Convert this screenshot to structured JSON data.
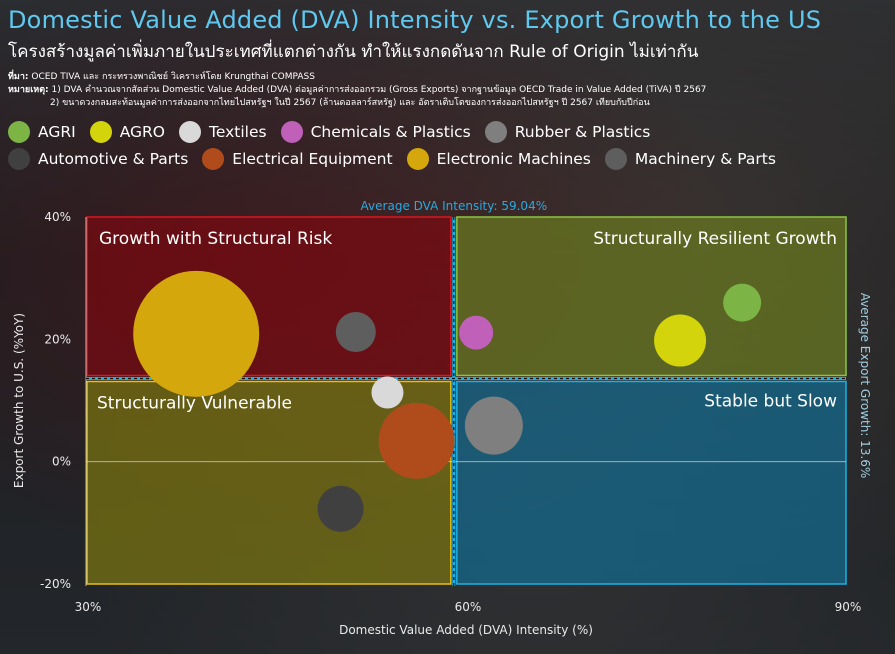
{
  "header": {
    "title": "Domestic Value Added (DVA) Intensity vs. Export Growth to the US",
    "subtitle": "โครงสร้างมูลค่าเพิ่มภายในประเทศที่แตกต่างกัน ทำให้แรงกดดันจาก Rule of Origin ไม่เท่ากัน",
    "source_label": "ที่มา:",
    "source_text": " OCED TIVA และ กระทรวงพาณิชย์ วิเคราะห์โดย Krungthai COMPASS",
    "note_label": "หมายเหตุ:",
    "note_1": " 1) DVA คำนวณจากสัดส่วน Domestic Value Added (DVA) ต่อมูลค่าการส่งออกรวม (Gross Exports) จากฐานข้อมูล OECD Trade in Value Added (TiVA) ปี 2567",
    "note_2": "2) ขนาดวงกลมสะท้อนมูลค่าการส่งออกจากไทยไปสหรัฐฯ ในปี 2567 (ล้านดอลลาร์สหรัฐ) และ อัตราเติบโตของการส่งออกไปสหรัฐฯ ปี 2567 เทียบกับปีก่อน"
  },
  "legend": [
    {
      "label": "AGRI",
      "color": "#7db446"
    },
    {
      "label": "AGRO",
      "color": "#d4d40c"
    },
    {
      "label": "Textiles",
      "color": "#d9d9d9"
    },
    {
      "label": "Chemicals & Plastics",
      "color": "#c060b8"
    },
    {
      "label": "Rubber & Plastics",
      "color": "#7f7f7f"
    },
    {
      "label": "Automotive & Parts",
      "color": "#404040"
    },
    {
      "label": "Electrical Equipment",
      "color": "#b04c1c"
    },
    {
      "label": "Electronic Machines",
      "color": "#d4a80c"
    },
    {
      "label": "Machinery & Parts",
      "color": "#5e5e5e"
    }
  ],
  "chart_data": {
    "type": "scatter",
    "subtype": "bubble",
    "title": "Domestic Value Added (DVA) Intensity vs. Export Growth to the US",
    "xlabel": "Domestic Value Added (DVA) Intensity (%)",
    "ylabel": "Export Growth to U.S. (%YoY)",
    "xlim": [
      30,
      90
    ],
    "ylim": [
      -20,
      40
    ],
    "x_ticks": [
      "30%",
      "60%",
      "90%"
    ],
    "x_tick_values": [
      30,
      60,
      90
    ],
    "y_ticks": [
      "40%",
      "20%",
      "0%",
      "-20%"
    ],
    "y_tick_values": [
      40,
      20,
      0,
      -20
    ],
    "avg_x": 59.04,
    "avg_y": 13.6,
    "avg_x_label": "Average DVA Intensity: 59.04%",
    "avg_y_label": "Average Export Growth: 13.6%",
    "quadrants": [
      {
        "label": "Growth with Structural Risk",
        "position": "top-left",
        "fill": "#7a0a10",
        "border": "#e0141e"
      },
      {
        "label": "Structurally Resilient Growth",
        "position": "top-right",
        "fill": "#6a7a20",
        "border": "#8cc63e"
      },
      {
        "label": "Structurally Vulnerable",
        "position": "bottom-left",
        "fill": "#7a7410",
        "border": "#e8c010"
      },
      {
        "label": "Stable but Slow",
        "position": "bottom-right",
        "fill": "#136b8f",
        "border": "#19b2e8"
      }
    ],
    "series": [
      {
        "name": "AGRI",
        "x": 81.8,
        "y": 26.0,
        "size": 19,
        "color": "#7db446"
      },
      {
        "name": "AGRO",
        "x": 76.9,
        "y": 19.8,
        "size": 26,
        "color": "#d4d40c"
      },
      {
        "name": "Textiles",
        "x": 53.8,
        "y": 11.3,
        "size": 16,
        "color": "#d9d9d9"
      },
      {
        "name": "Chemicals & Plastics",
        "x": 60.8,
        "y": 21.1,
        "size": 17,
        "color": "#c060b8"
      },
      {
        "name": "Rubber & Plastics",
        "x": 62.2,
        "y": 5.9,
        "size": 29,
        "color": "#7f7f7f"
      },
      {
        "name": "Automotive & Parts",
        "x": 50.1,
        "y": -7.7,
        "size": 23,
        "color": "#404040"
      },
      {
        "name": "Electrical Equipment",
        "x": 56.1,
        "y": 3.4,
        "size": 38,
        "color": "#b04c1c"
      },
      {
        "name": "Electronic Machines",
        "x": 38.7,
        "y": 20.9,
        "size": 63,
        "color": "#d4a80c"
      },
      {
        "name": "Machinery & Parts",
        "x": 51.3,
        "y": 21.2,
        "size": 20,
        "color": "#5e5e5e"
      }
    ],
    "grid": false,
    "legend_position": "top"
  }
}
